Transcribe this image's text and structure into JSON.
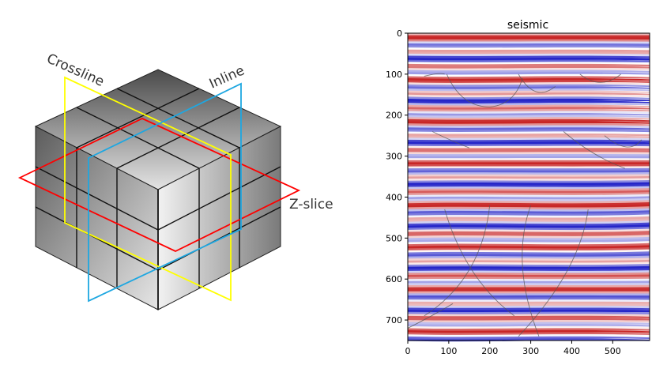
{
  "diagram": {
    "labels": {
      "crossline": "Crossline",
      "inline": "Inline",
      "zslice": "Z-slice"
    },
    "colors": {
      "crossline": "#ffff00",
      "inline": "#1ea7e1",
      "zslice": "#ff0000",
      "grid_lines": "#111111"
    }
  },
  "chart_data": {
    "type": "heatmap",
    "title": "seismic",
    "xlabel": "",
    "ylabel": "",
    "xlim": [
      0,
      590
    ],
    "ylim": [
      750,
      0
    ],
    "x_ticks": [
      0,
      100,
      200,
      300,
      400,
      500
    ],
    "y_ticks": [
      0,
      100,
      200,
      300,
      400,
      500,
      600,
      700
    ],
    "colormap": "seismic (blue-white-red)",
    "colors": {
      "positive": "#c81e1e",
      "negative": "#1e1ec8",
      "zero": "#ffffff"
    }
  }
}
